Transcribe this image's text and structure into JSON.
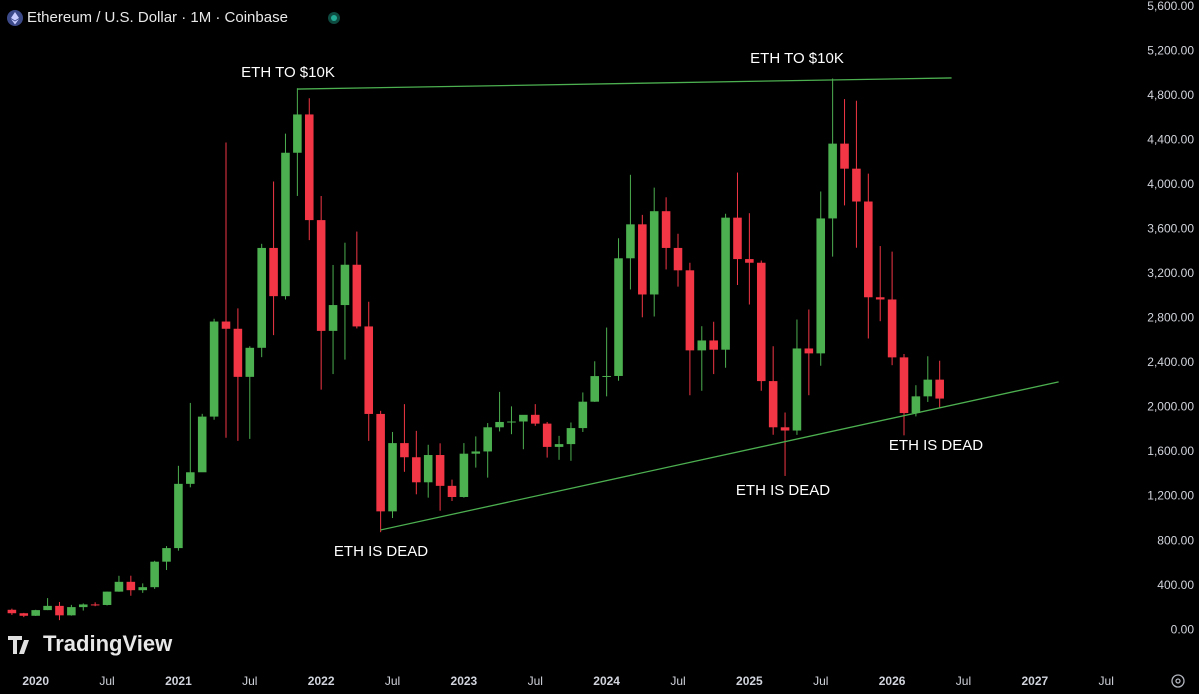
{
  "chart_data": {
    "type": "candlestick",
    "title": "Ethereum / U.S. Dollar · 1M · Coinbase",
    "watermark": "TradingView",
    "categories": [
      "2019-11",
      "2019-12",
      "2020-01",
      "2020-02",
      "2020-03",
      "2020-04",
      "2020-05",
      "2020-06",
      "2020-07",
      "2020-08",
      "2020-09",
      "2020-10",
      "2020-11",
      "2020-12",
      "2021-01",
      "2021-02",
      "2021-03",
      "2021-04",
      "2021-05",
      "2021-06",
      "2021-07",
      "2021-08",
      "2021-09",
      "2021-10",
      "2021-11",
      "2021-12",
      "2022-01",
      "2022-02",
      "2022-03",
      "2022-04",
      "2022-05",
      "2022-06",
      "2022-07",
      "2022-08",
      "2022-09",
      "2022-10",
      "2022-11",
      "2022-12",
      "2023-01",
      "2023-02",
      "2023-03",
      "2023-04",
      "2023-05",
      "2023-06",
      "2023-07",
      "2023-08",
      "2023-09",
      "2023-10",
      "2023-11",
      "2023-12",
      "2024-01",
      "2024-02",
      "2024-03",
      "2024-04",
      "2024-05",
      "2024-06",
      "2024-07",
      "2024-08",
      "2024-09",
      "2024-10",
      "2024-11",
      "2024-12",
      "2025-01",
      "2025-02",
      "2025-03",
      "2025-04",
      "2025-05",
      "2025-06",
      "2025-07",
      "2025-08",
      "2025-09",
      "2025-10",
      "2025-11",
      "2025-12",
      "2026-01",
      "2026-02",
      "2026-03",
      "2026-04",
      "2026-05"
    ],
    "open": [
      183,
      152,
      129,
      180,
      218,
      133,
      207,
      231,
      226,
      346,
      434,
      359,
      386,
      615,
      737,
      1314,
      1418,
      1918,
      2772,
      2707,
      2275,
      2536,
      3433,
      3000,
      4288,
      4632,
      3683,
      2688,
      2920,
      3282,
      2728,
      1942,
      1067,
      1680,
      1553,
      1328,
      1573,
      1296,
      1196,
      1585,
      1605,
      1822,
      1870,
      1874,
      1934,
      1855,
      1646,
      1671,
      1815,
      2052,
      2282,
      2283,
      3340,
      3645,
      3015,
      3763,
      3433,
      3232,
      2513,
      2602,
      2519,
      3705,
      3333,
      3300,
      2237,
      1822,
      1793,
      2530,
      2486,
      3698,
      4370,
      4145,
      3850,
      2990,
      2970,
      2450,
      1950,
      2100,
      2250
    ],
    "high": [
      193,
      155,
      183,
      288,
      253,
      227,
      240,
      250,
      347,
      488,
      489,
      420,
      623,
      755,
      1476,
      2041,
      1943,
      2797,
      4380,
      2890,
      2550,
      3470,
      4030,
      4460,
      4868,
      4778,
      3900,
      3280,
      3480,
      3580,
      2950,
      1970,
      1780,
      2030,
      1790,
      1665,
      1678,
      1352,
      1680,
      1740,
      1860,
      2140,
      2010,
      1930,
      2030,
      1870,
      1745,
      1865,
      2135,
      2415,
      2718,
      3520,
      4090,
      3730,
      3975,
      3888,
      3560,
      3300,
      2730,
      2770,
      3740,
      4110,
      3745,
      3320,
      2550,
      1955,
      2790,
      2880,
      3940,
      4955,
      4770,
      4755,
      4100,
      3450,
      3400,
      2480,
      2200,
      2460,
      2420
    ],
    "low": [
      137,
      117,
      127,
      180,
      90,
      130,
      176,
      215,
      222,
      345,
      309,
      335,
      371,
      540,
      714,
      1283,
      1430,
      1890,
      1728,
      1700,
      1718,
      2452,
      2650,
      2970,
      3900,
      3503,
      2160,
      2300,
      2430,
      2710,
      1700,
      880,
      1007,
      1422,
      1220,
      1190,
      1073,
      1160,
      1190,
      1460,
      1370,
      1785,
      1760,
      1625,
      1835,
      1550,
      1530,
      1521,
      1780,
      2050,
      2100,
      2240,
      3060,
      2810,
      2817,
      3240,
      3085,
      2110,
      2150,
      2300,
      2357,
      3100,
      2925,
      2150,
      1755,
      1385,
      1754,
      2110,
      2375,
      3355,
      3815,
      3435,
      2620,
      2775,
      2380,
      1750,
      1920,
      2050,
      2000
    ],
    "close": [
      152,
      129,
      180,
      218,
      133,
      207,
      231,
      226,
      346,
      434,
      359,
      386,
      615,
      737,
      1314,
      1418,
      1918,
      2772,
      2707,
      2275,
      2536,
      3433,
      3000,
      4288,
      4632,
      3683,
      2688,
      2920,
      3282,
      2728,
      1942,
      1067,
      1680,
      1553,
      1328,
      1573,
      1296,
      1196,
      1585,
      1605,
      1822,
      1870,
      1874,
      1934,
      1855,
      1646,
      1671,
      1815,
      2052,
      2282,
      2283,
      3340,
      3645,
      3015,
      3763,
      3433,
      3232,
      2513,
      2602,
      2519,
      3705,
      3333,
      3300,
      2237,
      1822,
      1793,
      2530,
      2486,
      3698,
      4370,
      4145,
      3850,
      2990,
      2970,
      2450,
      1950,
      2100,
      2250,
      2080
    ],
    "up_color": "#4caf50",
    "down_color": "#f23645",
    "xlim": [
      "2019-10",
      "2027-09"
    ],
    "xticks": [
      {
        "value": "2020-01",
        "label": "2020"
      },
      {
        "value": "2020-07",
        "label": "Jul"
      },
      {
        "value": "2021-01",
        "label": "2021"
      },
      {
        "value": "2021-07",
        "label": "Jul"
      },
      {
        "value": "2022-01",
        "label": "2022"
      },
      {
        "value": "2022-07",
        "label": "Jul"
      },
      {
        "value": "2023-01",
        "label": "2023"
      },
      {
        "value": "2023-07",
        "label": "Jul"
      },
      {
        "value": "2024-01",
        "label": "2024"
      },
      {
        "value": "2024-07",
        "label": "Jul"
      },
      {
        "value": "2025-01",
        "label": "2025"
      },
      {
        "value": "2025-07",
        "label": "Jul"
      },
      {
        "value": "2026-01",
        "label": "2026"
      },
      {
        "value": "2026-07",
        "label": "Jul"
      },
      {
        "value": "2027-01",
        "label": "2027"
      },
      {
        "value": "2027-07",
        "label": "Jul"
      }
    ],
    "ylim": [
      -340,
      5660
    ],
    "yticks": [
      {
        "value": 5600,
        "label": "5,600.00"
      },
      {
        "value": 5200,
        "label": "5,200.00"
      },
      {
        "value": 4800,
        "label": "4,800.00"
      },
      {
        "value": 4400,
        "label": "4,400.00"
      },
      {
        "value": 4000,
        "label": "4,000.00"
      },
      {
        "value": 3600,
        "label": "3,600.00"
      },
      {
        "value": 3200,
        "label": "3,200.00"
      },
      {
        "value": 2800,
        "label": "2,800.00"
      },
      {
        "value": 2400,
        "label": "2,400.00"
      },
      {
        "value": 2000,
        "label": "2,000.00"
      },
      {
        "value": 1600,
        "label": "1,600.00"
      },
      {
        "value": 1200,
        "label": "1,200.00"
      },
      {
        "value": 800,
        "label": "800.00"
      },
      {
        "value": 400,
        "label": "400.00"
      },
      {
        "value": 0,
        "label": "0.00"
      }
    ],
    "grid": false,
    "trendlines": [
      {
        "x": [
          "2021-11",
          "2026-06"
        ],
        "y": [
          4860,
          4960
        ],
        "color": "#4caf50"
      },
      {
        "x": [
          "2022-06",
          "2027-03"
        ],
        "y": [
          900,
          2230
        ],
        "color": "#4caf50"
      }
    ],
    "annotations": [
      "ETH TO $10K",
      "ETH TO $10K",
      "ETH IS DEAD",
      "ETH IS DEAD",
      "ETH IS DEAD"
    ]
  }
}
